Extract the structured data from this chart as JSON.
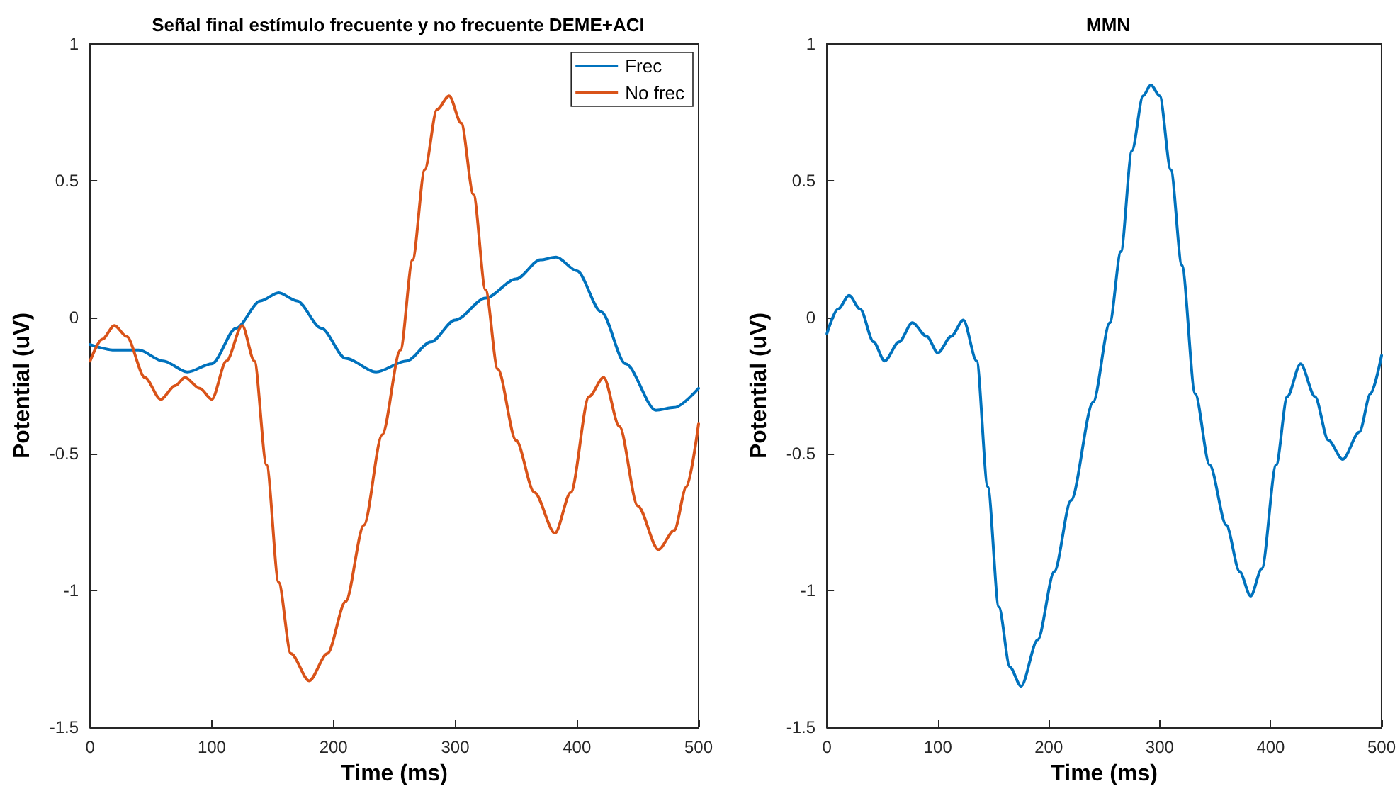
{
  "chart_data": [
    {
      "type": "line",
      "title": "Señal final estímulo frecuente y no frecuente DEME+ACI",
      "xlabel": "Time (ms)",
      "ylabel": "Potential (uV)",
      "xlim": [
        0,
        500
      ],
      "xticks": [
        0,
        100,
        200,
        300,
        400,
        500
      ],
      "ylim": [
        -1.5,
        1
      ],
      "yticks": [
        -1.5,
        -1,
        -0.5,
        0,
        0.5,
        1
      ],
      "legend": "top right",
      "series": [
        {
          "name": "Frec",
          "color": "#0072bd",
          "x": [
            0,
            20,
            40,
            60,
            80,
            100,
            120,
            140,
            155,
            170,
            190,
            210,
            235,
            260,
            280,
            300,
            325,
            350,
            370,
            383,
            400,
            420,
            440,
            465,
            480,
            500
          ],
          "values": [
            -0.1,
            -0.12,
            -0.12,
            -0.16,
            -0.2,
            -0.17,
            -0.04,
            0.06,
            0.09,
            0.06,
            -0.04,
            -0.15,
            -0.2,
            -0.16,
            -0.09,
            -0.01,
            0.07,
            0.14,
            0.21,
            0.22,
            0.17,
            0.02,
            -0.17,
            -0.34,
            -0.33,
            -0.26
          ]
        },
        {
          "name": "No frec",
          "color": "#d95319",
          "x": [
            0,
            10,
            20,
            30,
            45,
            58,
            70,
            78,
            90,
            100,
            112,
            125,
            135,
            145,
            155,
            165,
            180,
            195,
            210,
            225,
            240,
            255,
            265,
            275,
            285,
            295,
            305,
            315,
            325,
            335,
            350,
            365,
            382,
            395,
            410,
            422,
            435,
            450,
            467,
            480,
            490,
            500
          ],
          "values": [
            -0.16,
            -0.08,
            -0.03,
            -0.07,
            -0.22,
            -0.3,
            -0.25,
            -0.22,
            -0.26,
            -0.3,
            -0.16,
            -0.03,
            -0.16,
            -0.54,
            -0.97,
            -1.23,
            -1.33,
            -1.23,
            -1.04,
            -0.76,
            -0.43,
            -0.12,
            0.21,
            0.54,
            0.76,
            0.81,
            0.71,
            0.45,
            0.1,
            -0.19,
            -0.45,
            -0.64,
            -0.79,
            -0.64,
            -0.29,
            -0.22,
            -0.4,
            -0.69,
            -0.85,
            -0.78,
            -0.62,
            -0.39
          ]
        }
      ]
    },
    {
      "type": "line",
      "title": "MMN",
      "xlabel": "Time (ms)",
      "ylabel": "Potential (uV)",
      "xlim": [
        0,
        500
      ],
      "xticks": [
        0,
        100,
        200,
        300,
        400,
        500
      ],
      "ylim": [
        -1.5,
        1
      ],
      "yticks": [
        -1.5,
        -1,
        -0.5,
        0,
        0.5,
        1
      ],
      "series": [
        {
          "color": "#0072bd",
          "x": [
            0,
            10,
            20,
            30,
            42,
            52,
            65,
            77,
            90,
            100,
            112,
            123,
            135,
            145,
            155,
            165,
            175,
            190,
            205,
            220,
            240,
            255,
            265,
            275,
            285,
            292,
            300,
            310,
            320,
            332,
            345,
            360,
            372,
            382,
            392,
            405,
            415,
            427,
            440,
            452,
            465,
            480,
            490,
            500
          ],
          "values": [
            -0.06,
            0.03,
            0.08,
            0.03,
            -0.09,
            -0.16,
            -0.09,
            -0.02,
            -0.07,
            -0.13,
            -0.07,
            -0.01,
            -0.16,
            -0.62,
            -1.06,
            -1.28,
            -1.35,
            -1.18,
            -0.93,
            -0.67,
            -0.31,
            -0.02,
            0.24,
            0.61,
            0.81,
            0.85,
            0.81,
            0.54,
            0.19,
            -0.28,
            -0.54,
            -0.76,
            -0.93,
            -1.02,
            -0.92,
            -0.54,
            -0.29,
            -0.17,
            -0.29,
            -0.45,
            -0.52,
            -0.42,
            -0.28,
            -0.14
          ]
        }
      ]
    }
  ]
}
